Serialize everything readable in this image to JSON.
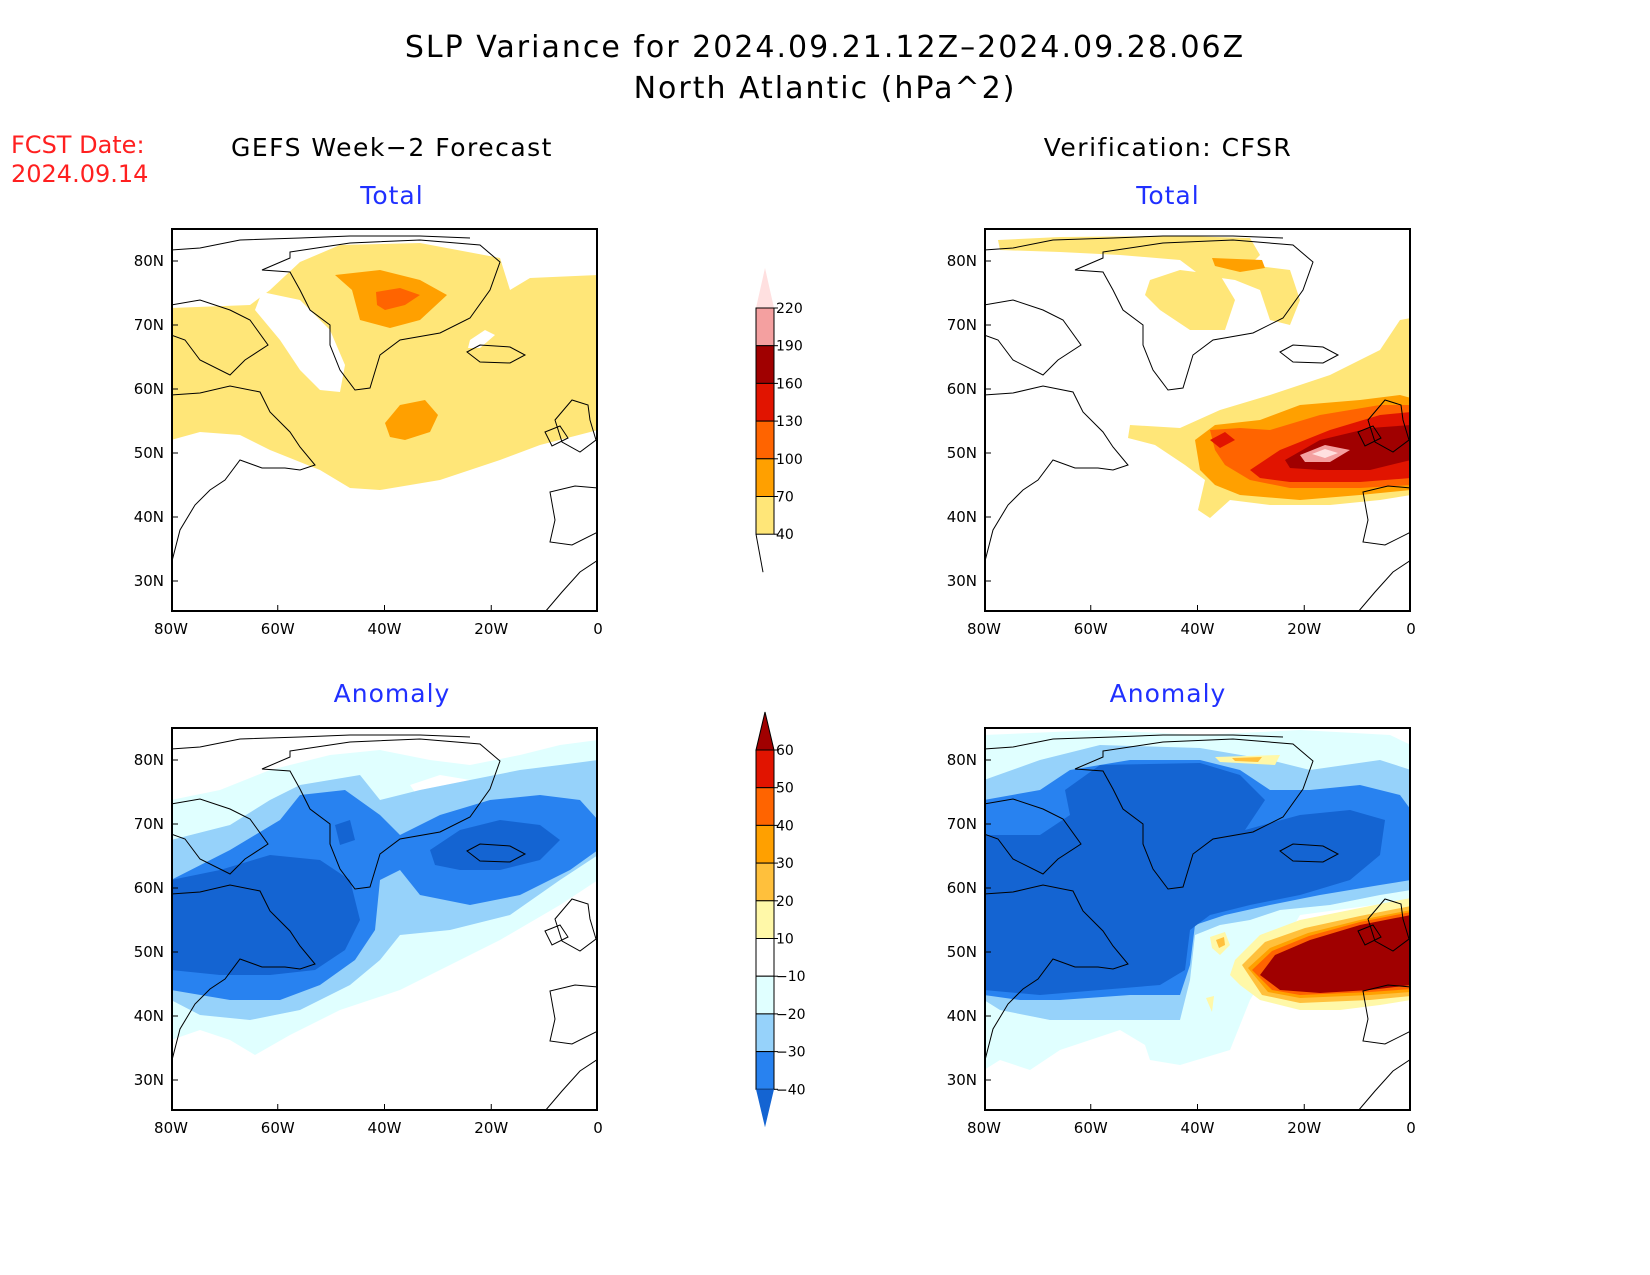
{
  "header": {
    "title": "SLP Variance for 2024.09.21.12Z–2024.09.28.06Z",
    "subtitle": "North Atlantic (hPa^2)"
  },
  "fcst": {
    "label": "FCST Date:",
    "date": "2024.09.14"
  },
  "columns": {
    "left": "GEFS Week−2 Forecast",
    "right": "Verification: CFSR"
  },
  "panels": {
    "total": "Total",
    "anomaly": "Anomaly"
  },
  "axes": {
    "lat": [
      "80N",
      "70N",
      "60N",
      "50N",
      "40N",
      "30N"
    ],
    "lon": [
      "80W",
      "60W",
      "40W",
      "20W",
      "0"
    ]
  },
  "colorbar_total": {
    "labels": [
      "220",
      "190",
      "160",
      "130",
      "100",
      "70",
      "40"
    ],
    "colors": [
      "#ffe0e0",
      "#f4a0a0",
      "#a00000",
      "#e11400",
      "#ff6400",
      "#ffa000",
      "#ffe678"
    ]
  },
  "colorbar_anom": {
    "labels": [
      "60",
      "50",
      "40",
      "30",
      "20",
      "10",
      "−10",
      "−20",
      "−30",
      "−40"
    ],
    "colors": [
      "#a00000",
      "#e11400",
      "#ff6400",
      "#ffa000",
      "#ffc03c",
      "#fff8a8",
      "#ffffff",
      "#e0ffff",
      "#96d2fa",
      "#2882f0",
      "#1464d2"
    ]
  }
}
